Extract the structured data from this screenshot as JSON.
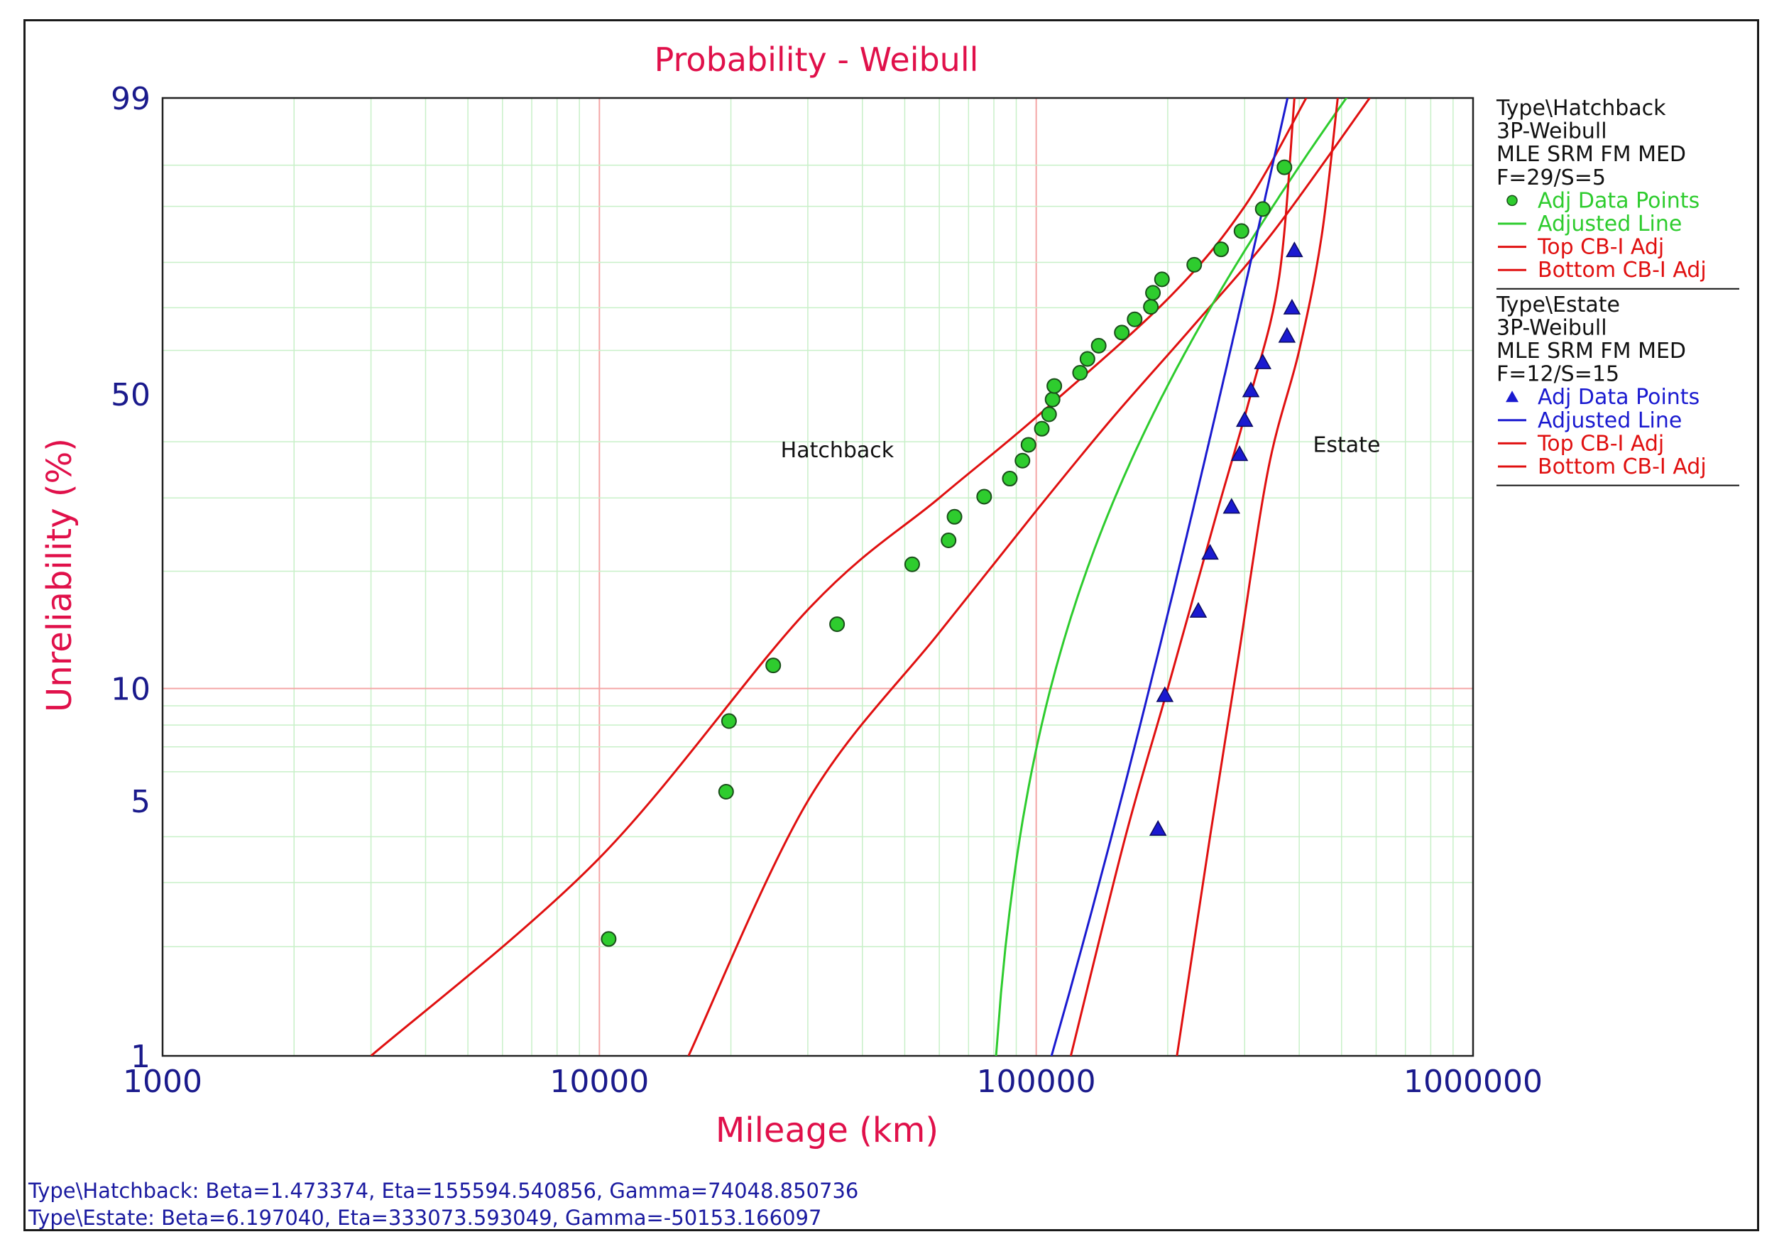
{
  "chart_data": {
    "type": "scatter",
    "title": "Probability - Weibull",
    "xlabel": "Mileage (km)",
    "ylabel": "Unreliability (%)",
    "x_scale": "log",
    "y_scale": "weibull",
    "xlim": [
      1000,
      1000000
    ],
    "ylim": [
      1,
      99
    ],
    "x_ticks": [
      "1000",
      "10000",
      "100000",
      "1000000"
    ],
    "y_ticks": [
      "1",
      "5",
      "10",
      "50",
      "99"
    ],
    "annotations": [
      {
        "text": "Hatchback",
        "x": 26000,
        "y": 37
      },
      {
        "text": "Estate",
        "x": 430000,
        "y": 38
      }
    ],
    "series": [
      {
        "name": "Type\\Hatchback",
        "color": "#2ecc2e",
        "marker": "circle",
        "points": [
          {
            "x": 10500,
            "y": 2.1
          },
          {
            "x": 19500,
            "y": 5.3
          },
          {
            "x": 19800,
            "y": 8.2
          },
          {
            "x": 25000,
            "y": 11.5
          },
          {
            "x": 35000,
            "y": 14.7
          },
          {
            "x": 52000,
            "y": 20.8
          },
          {
            "x": 63000,
            "y": 23.8
          },
          {
            "x": 65000,
            "y": 27.1
          },
          {
            "x": 76000,
            "y": 30.2
          },
          {
            "x": 87000,
            "y": 33.2
          },
          {
            "x": 93000,
            "y": 36.4
          },
          {
            "x": 96000,
            "y": 39.4
          },
          {
            "x": 103000,
            "y": 42.6
          },
          {
            "x": 107000,
            "y": 45.6
          },
          {
            "x": 109000,
            "y": 48.8
          },
          {
            "x": 110000,
            "y": 51.8
          },
          {
            "x": 126000,
            "y": 54.8
          },
          {
            "x": 131000,
            "y": 58.0
          },
          {
            "x": 139000,
            "y": 61.1
          },
          {
            "x": 157000,
            "y": 64.2
          },
          {
            "x": 168000,
            "y": 67.3
          },
          {
            "x": 183000,
            "y": 70.2
          },
          {
            "x": 185000,
            "y": 73.4
          },
          {
            "x": 194000,
            "y": 76.4
          },
          {
            "x": 230000,
            "y": 79.5
          },
          {
            "x": 265000,
            "y": 82.6
          },
          {
            "x": 295000,
            "y": 86.0
          },
          {
            "x": 330000,
            "y": 89.6
          },
          {
            "x": 370000,
            "y": 94.8
          }
        ],
        "fit_line": {
          "name": "Adjusted Line",
          "beta": 1.473374,
          "eta": 155594.540856,
          "gamma": 74048.850736
        },
        "ci_top": [
          [
            3000,
            1
          ],
          [
            10000,
            3.5
          ],
          [
            30000,
            16
          ],
          [
            60000,
            30
          ],
          [
            100000,
            45
          ],
          [
            200000,
            72
          ],
          [
            300000,
            90
          ],
          [
            415000,
            99
          ]
        ],
        "ci_bottom": [
          [
            16000,
            1
          ],
          [
            30000,
            5
          ],
          [
            60000,
            14
          ],
          [
            100000,
            28
          ],
          [
            150000,
            45
          ],
          [
            230000,
            66
          ],
          [
            350000,
            86
          ],
          [
            580000,
            99
          ]
        ],
        "legend": {
          "header": [
            "Type\\Hatchback",
            "3P-Weibull",
            "MLE SRM FM MED",
            "F=29/S=5"
          ],
          "items": [
            "Adj Data Points",
            "Adjusted Line",
            "Top CB-I Adj",
            "Bottom CB-I Adj"
          ]
        }
      },
      {
        "name": "Type\\Estate",
        "color": "#1a1ad0",
        "marker": "triangle",
        "points": [
          {
            "x": 190000,
            "y": 4.2
          },
          {
            "x": 197000,
            "y": 9.6
          },
          {
            "x": 235000,
            "y": 15.9
          },
          {
            "x": 250000,
            "y": 22.2
          },
          {
            "x": 280000,
            "y": 28.6
          },
          {
            "x": 292000,
            "y": 37.6
          },
          {
            "x": 300000,
            "y": 44.4
          },
          {
            "x": 310000,
            "y": 50.8
          },
          {
            "x": 330000,
            "y": 57.2
          },
          {
            "x": 375000,
            "y": 63.4
          },
          {
            "x": 385000,
            "y": 70.0
          },
          {
            "x": 390000,
            "y": 82.4
          }
        ],
        "fit_line": {
          "name": "Adjusted Line",
          "beta": 6.19704,
          "eta": 333073.593049,
          "gamma": -50153.166097
        },
        "ci_top": [
          [
            120000,
            1
          ],
          [
            160000,
            4
          ],
          [
            200000,
            10
          ],
          [
            260000,
            28
          ],
          [
            310000,
            50
          ],
          [
            360000,
            77
          ],
          [
            390000,
            99
          ]
        ],
        "ci_bottom": [
          [
            210000,
            1
          ],
          [
            250000,
            4
          ],
          [
            290000,
            12
          ],
          [
            340000,
            35
          ],
          [
            400000,
            60
          ],
          [
            450000,
            85
          ],
          [
            490000,
            99
          ]
        ],
        "legend": {
          "header": [
            "Type\\Estate",
            "3P-Weibull",
            "MLE SRM FM MED",
            "F=12/S=15"
          ],
          "items": [
            "Adj Data Points",
            "Adjusted Line",
            "Top CB-I Adj",
            "Bottom CB-I Adj"
          ]
        }
      }
    ],
    "colors": {
      "title": "#e0104a",
      "axis_numbers": "#1a1a8c",
      "ci": "#e01010",
      "grid_major": "#f4a6a6",
      "grid_minor": "#c8f0c8"
    }
  },
  "footer": {
    "line1": "Type\\Hatchback: Beta=1.473374, Eta=155594.540856, Gamma=74048.850736",
    "line2": "Type\\Estate: Beta=6.197040, Eta=333073.593049, Gamma=-50153.166097"
  }
}
